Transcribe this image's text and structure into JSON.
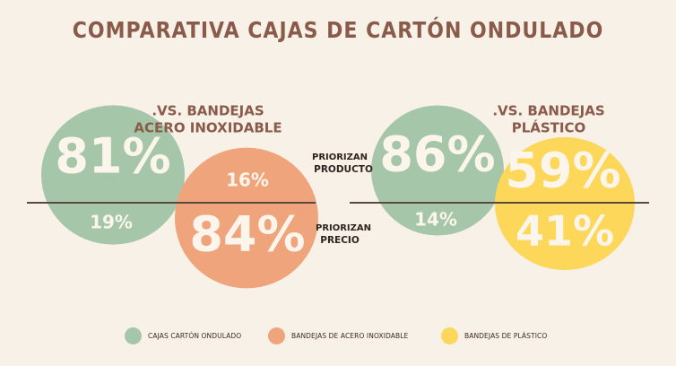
{
  "title": "COMPARATIVA CAJAS DE CARTÓN ONDULADO",
  "center_labels": {
    "top": [
      "PRIORIZAN",
      "PRODUCTO"
    ],
    "bottom": [
      "PRIORIZAN",
      "PRECIO"
    ]
  },
  "colors": {
    "background": "#f8f1e8",
    "title": "#8a5a4a",
    "carton": "#a5c6a8",
    "acero": "#f0a47c",
    "plastico": "#fcd75a",
    "line": "#5a4a42"
  },
  "chart_data": [
    {
      "type": "bubble",
      "title": ".VS. BANDEJAS ACERO INOXIDABLE",
      "title_lines": [
        ".VS. BANDEJAS",
        "ACERO INOXIDABLE"
      ],
      "categories": [
        "Priorizan producto",
        "Priorizan precio"
      ],
      "series": [
        {
          "name": "CAJAS CARTÓN ONDULADO",
          "values": [
            81,
            19
          ],
          "labels": [
            "81%",
            "19%"
          ]
        },
        {
          "name": "BANDEJAS DE ACERO INOXIDABLE",
          "values": [
            16,
            84
          ],
          "labels": [
            "16%",
            "84%"
          ]
        }
      ]
    },
    {
      "type": "bubble",
      "title": ".VS. BANDEJAS PLÁSTICO",
      "title_lines": [
        ".VS. BANDEJAS",
        "PLÁSTICO"
      ],
      "categories": [
        "Priorizan producto",
        "Priorizan precio"
      ],
      "series": [
        {
          "name": "CAJAS CARTÓN ONDULADO",
          "values": [
            86,
            14
          ],
          "labels": [
            "86%",
            "14%"
          ]
        },
        {
          "name": "BANDEJAS DE PLÁSTICO",
          "values": [
            59,
            41
          ],
          "labels": [
            "59%",
            "41%"
          ]
        }
      ]
    }
  ],
  "legend": [
    {
      "label": "CAJAS CARTÓN ONDULADO",
      "color": "#a5c6a8"
    },
    {
      "label": "BANDEJAS DE ACERO INOXIDABLE",
      "color": "#f0a47c"
    },
    {
      "label": "BANDEJAS DE PLÁSTICO",
      "color": "#fcd75a"
    }
  ]
}
